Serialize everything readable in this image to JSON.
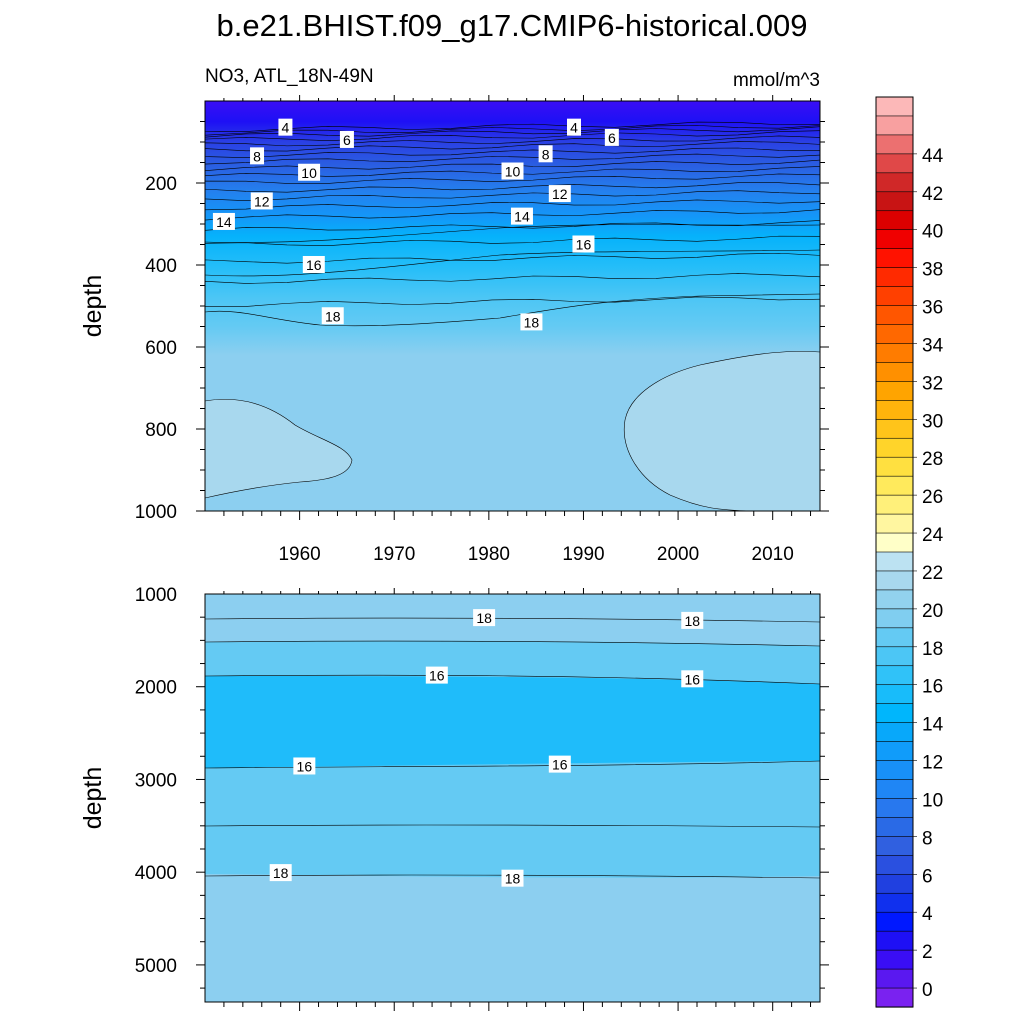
{
  "title": "b.e21.BHIST.f09_g17.CMIP6-historical.009",
  "chart_data": {
    "type": "heatmap",
    "subtitle_left": "NO3, ATL_18N-49N",
    "subtitle_right": "mmol/m^3",
    "x_range": [
      1950,
      2015
    ],
    "x_ticks": [
      "1960",
      "1970",
      "1980",
      "1990",
      "2000",
      "2010"
    ],
    "panels": [
      {
        "name": "upper",
        "ylabel": "depth",
        "y_range": [
          0,
          1000
        ],
        "y_ticks": [
          "200",
          "400",
          "600",
          "800",
          "1000"
        ],
        "contour_labels": [
          {
            "text": "4",
            "year": 1958.5,
            "depth": 65
          },
          {
            "text": "6",
            "year": 1965.0,
            "depth": 95
          },
          {
            "text": "4",
            "year": 1989.0,
            "depth": 65
          },
          {
            "text": "6",
            "year": 1993.0,
            "depth": 90
          },
          {
            "text": "8",
            "year": 1955.5,
            "depth": 135
          },
          {
            "text": "10",
            "year": 1961.0,
            "depth": 175
          },
          {
            "text": "8",
            "year": 1986.0,
            "depth": 130
          },
          {
            "text": "10",
            "year": 1982.5,
            "depth": 172
          },
          {
            "text": "12",
            "year": 1956.0,
            "depth": 245
          },
          {
            "text": "12",
            "year": 1987.5,
            "depth": 227
          },
          {
            "text": "14",
            "year": 1952.0,
            "depth": 295
          },
          {
            "text": "14",
            "year": 1983.5,
            "depth": 282
          },
          {
            "text": "16",
            "year": 1961.5,
            "depth": 400
          },
          {
            "text": "16",
            "year": 1990.0,
            "depth": 350
          },
          {
            "text": "18",
            "year": 1963.5,
            "depth": 525
          },
          {
            "text": "18",
            "year": 1984.5,
            "depth": 540
          }
        ]
      },
      {
        "name": "lower",
        "ylabel": "depth",
        "y_range": [
          1000,
          5400
        ],
        "y_ticks": [
          "1000",
          "2000",
          "3000",
          "4000",
          "5000"
        ],
        "contour_labels": [
          {
            "text": "18",
            "year": 1979.5,
            "depth": 1260
          },
          {
            "text": "18",
            "year": 2001.5,
            "depth": 1290
          },
          {
            "text": "16",
            "year": 1974.5,
            "depth": 1880
          },
          {
            "text": "16",
            "year": 2001.5,
            "depth": 1920
          },
          {
            "text": "16",
            "year": 1960.5,
            "depth": 2860
          },
          {
            "text": "16",
            "year": 1987.5,
            "depth": 2840
          },
          {
            "text": "18",
            "year": 1958.0,
            "depth": 4010
          },
          {
            "text": "18",
            "year": 1982.5,
            "depth": 4070
          }
        ]
      }
    ],
    "colorbar": {
      "labels": [
        "0",
        "2",
        "4",
        "6",
        "8",
        "10",
        "12",
        "14",
        "16",
        "18",
        "20",
        "22",
        "24",
        "26",
        "28",
        "30",
        "32",
        "34",
        "36",
        "38",
        "40",
        "42",
        "44"
      ],
      "colors": [
        "#7a22f0",
        "#5a18f0",
        "#3a0ef5",
        "#1e10f5",
        "#0018ff",
        "#1030ee",
        "#2040e0",
        "#2a50e0",
        "#3060e0",
        "#2a6ae6",
        "#2878ee",
        "#1f86f5",
        "#1890f8",
        "#109cfa",
        "#08a8fa",
        "#00b6fc",
        "#18bcfa",
        "#30c2f8",
        "#4cc6f5",
        "#64caf3",
        "#80cef0",
        "#92d2ee",
        "#a8d8ee",
        "#bce2f2",
        "#ffffc8",
        "#fff6a0",
        "#fff07a",
        "#ffea5c",
        "#ffe040",
        "#ffd42a",
        "#ffc41a",
        "#ffb40c",
        "#ffa400",
        "#ff9000",
        "#ff7c00",
        "#ff6800",
        "#ff5600",
        "#ff4000",
        "#ff2a00",
        "#ff1200",
        "#f00000",
        "#dc0000",
        "#c81414",
        "#d02828",
        "#e04848",
        "#ec7070",
        "#f8a0a0",
        "#fcb8b8"
      ]
    }
  }
}
